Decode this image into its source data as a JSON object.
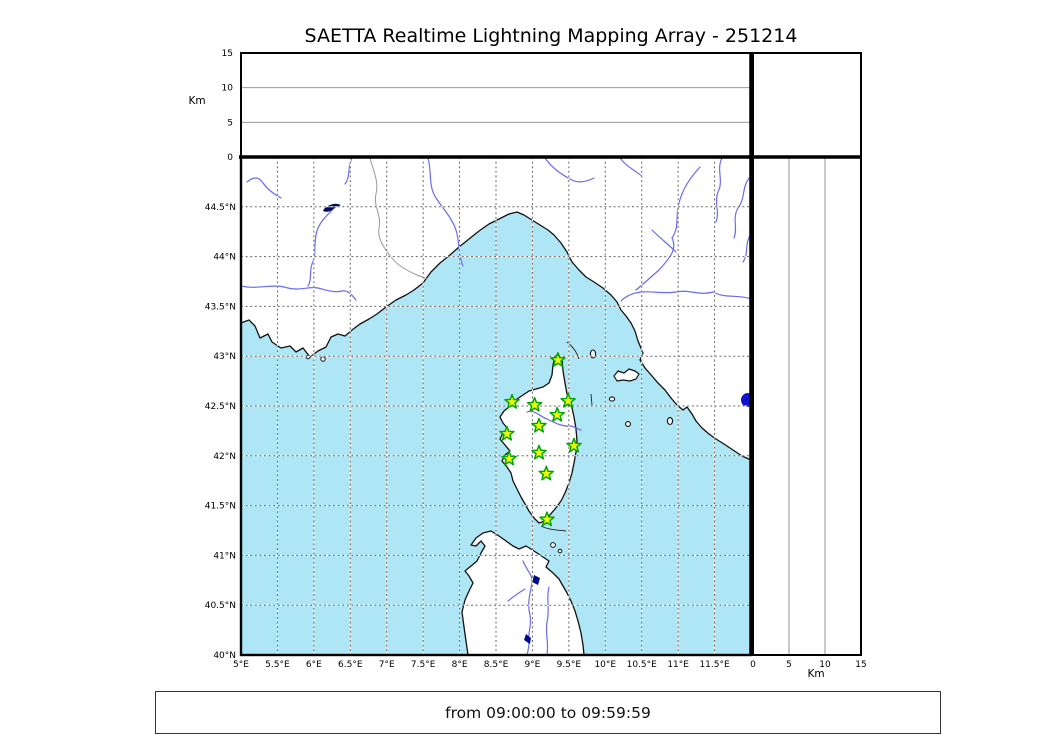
{
  "title": "SAETTA Realtime Lightning Mapping Array - 251214",
  "footer": {
    "time_range": "from 09:00:00 to 09:59:59"
  },
  "chart_data": {
    "type": "scatter",
    "title": "SAETTA Realtime Lightning Mapping Array - 251214",
    "time_window": "from 09:00:00 to 09:59:59",
    "layout": "XLMA-style: time-height strip (top), plan-view map (center), altitude-vs-latitude strip (right), altitude histogram (top-right)",
    "map": {
      "lon_range": [
        5,
        12
      ],
      "lat_range": [
        40,
        45
      ],
      "grid_step_deg": 0.5,
      "grid_style": "dashed",
      "lon_ticks": [
        {
          "label": "5°E",
          "lon": 5
        },
        {
          "label": "5.5°E",
          "lon": 5.5
        },
        {
          "label": "6°E",
          "lon": 6
        },
        {
          "label": "6.5°E",
          "lon": 6.5
        },
        {
          "label": "7°E",
          "lon": 7
        },
        {
          "label": "7.5°E",
          "lon": 7.5
        },
        {
          "label": "8°E",
          "lon": 8
        },
        {
          "label": "8.5°E",
          "lon": 8.5
        },
        {
          "label": "9°E",
          "lon": 9
        },
        {
          "label": "9.5°E",
          "lon": 9.5
        },
        {
          "label": "10°E",
          "lon": 10
        },
        {
          "label": "10.5°E",
          "lon": 10.5
        },
        {
          "label": "11°E",
          "lon": 11
        },
        {
          "label": "11.5°E",
          "lon": 11.5
        }
      ],
      "lat_ticks": [
        {
          "label": "44.5°N",
          "lat": 44.5
        },
        {
          "label": "44°N",
          "lat": 44
        },
        {
          "label": "43.5°N",
          "lat": 43.5
        },
        {
          "label": "43°N",
          "lat": 43
        },
        {
          "label": "42.5°N",
          "lat": 42.5
        },
        {
          "label": "42°N",
          "lat": 42
        },
        {
          "label": "41.5°N",
          "lat": 41.5
        },
        {
          "label": "41°N",
          "lat": 41
        },
        {
          "label": "40.5°N",
          "lat": 40.5
        },
        {
          "label": "40°N",
          "lat": 40
        }
      ]
    },
    "altitude_axis": {
      "label": "Km",
      "range_km": [
        0,
        15
      ],
      "ticks": [
        {
          "label": "15",
          "km": 15
        },
        {
          "label": "10",
          "km": 10
        },
        {
          "label": "5",
          "km": 5
        },
        {
          "label": "0",
          "km": 0
        }
      ],
      "gridlines_km": [
        5,
        10
      ]
    },
    "distance_axis": {
      "label": "Km",
      "range_km": [
        0,
        15
      ],
      "ticks": [
        {
          "label": "0",
          "km": 0
        },
        {
          "label": "5",
          "km": 5
        },
        {
          "label": "10",
          "km": 10
        },
        {
          "label": "15",
          "km": 15
        }
      ],
      "gridlines_km": [
        5,
        10
      ]
    },
    "stations": [
      {
        "lon": 9.35,
        "lat": 42.96
      },
      {
        "lon": 8.72,
        "lat": 42.54
      },
      {
        "lon": 9.03,
        "lat": 42.51
      },
      {
        "lon": 9.49,
        "lat": 42.55
      },
      {
        "lon": 9.34,
        "lat": 42.41
      },
      {
        "lon": 9.09,
        "lat": 42.3
      },
      {
        "lon": 8.65,
        "lat": 42.22
      },
      {
        "lon": 9.57,
        "lat": 42.1
      },
      {
        "lon": 9.09,
        "lat": 42.03
      },
      {
        "lon": 8.68,
        "lat": 41.97
      },
      {
        "lon": 9.19,
        "lat": 41.82
      },
      {
        "lon": 9.2,
        "lat": 41.36
      }
    ],
    "lightning_sources": []
  },
  "colors": {
    "sea": "#aee6f5",
    "land": "#ffffff",
    "coastline": "#111111",
    "river": "#6b6bf0",
    "lake": "#0a0abe",
    "grid": "#666666",
    "country_border": "#999999",
    "station_fill": "#f2ff00",
    "station_stroke": "#00a507"
  }
}
